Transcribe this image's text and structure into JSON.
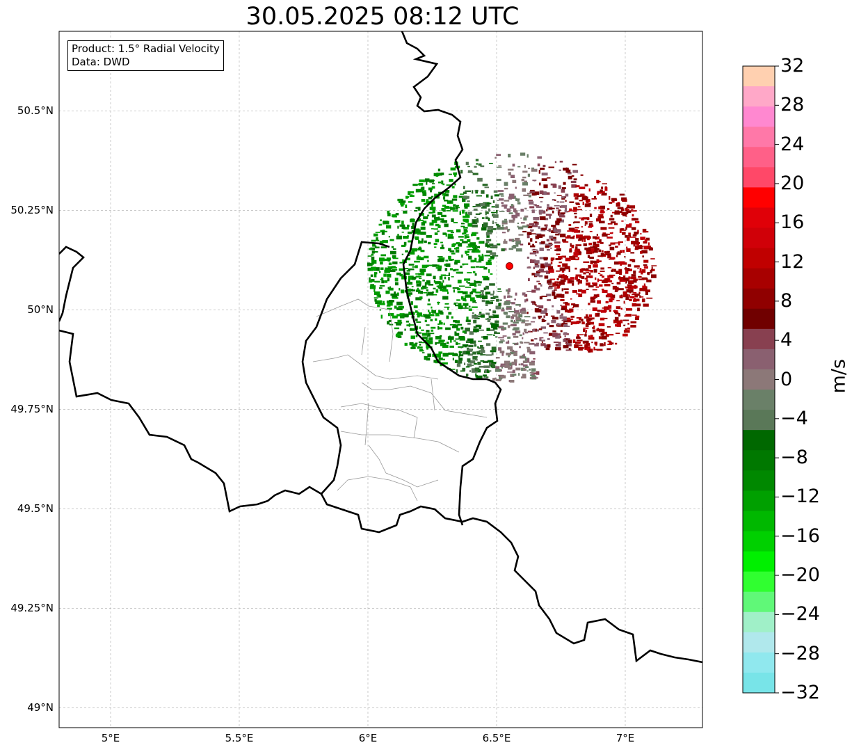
{
  "title": "30.05.2025 08:12 UTC",
  "info_box": {
    "product_line": "Product: 1.5° Radial Velocity",
    "data_line": "Data: DWD"
  },
  "map": {
    "lon_range": [
      4.8,
      7.3
    ],
    "lat_range": [
      48.95,
      50.7
    ],
    "lat_ticks": [
      "50.5°N",
      "50.25°N",
      "50°N",
      "49.75°N",
      "49.5°N",
      "49.25°N",
      "49°N"
    ],
    "lon_ticks": [
      "5°E",
      "5.5°E",
      "6°E",
      "6.5°E",
      "7°E"
    ],
    "gridlines": true,
    "radar_site": {
      "lon": 6.55,
      "lat": 50.11,
      "color": "#ff0000"
    },
    "radar_range_note": "velocity field: green (negative) west, red (positive) east"
  },
  "colorbar": {
    "unit": "m/s",
    "min": -32,
    "max": 32,
    "tick_labels": [
      "32",
      "28",
      "24",
      "20",
      "16",
      "12",
      "8",
      "4",
      "0",
      "−4",
      "−8",
      "−12",
      "−16",
      "−20",
      "−24",
      "−28",
      "−32"
    ],
    "colors_top_to_bottom": [
      "#ffd0b0",
      "#ffa8c8",
      "#ff88d0",
      "#ff78a8",
      "#ff6088",
      "#ff4868",
      "#ff0000",
      "#e00008",
      "#d00008",
      "#c00000",
      "#a80000",
      "#900000",
      "#700000",
      "#884050",
      "#8a6070",
      "#8c7878",
      "#6a8068",
      "#5a7858",
      "#006800",
      "#007800",
      "#008800",
      "#00a000",
      "#00b800",
      "#00d000",
      "#00f000",
      "#30ff30",
      "#60f878",
      "#a0f0c8",
      "#b0e8ec",
      "#90e8ee",
      "#78e4e8"
    ]
  }
}
